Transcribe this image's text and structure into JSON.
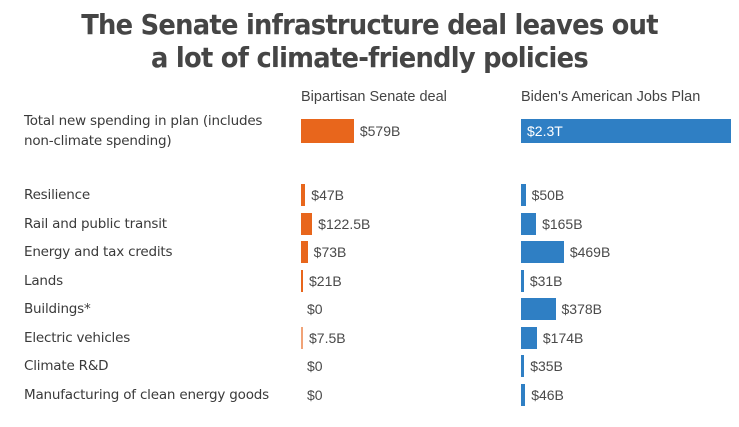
{
  "chart_data": {
    "type": "bar",
    "orientation": "horizontal",
    "title": "The Senate infrastructure deal leaves out a lot of climate-friendly policies",
    "title_lines": [
      "The Senate infrastructure deal leaves out",
      "a lot of climate-friendly policies"
    ],
    "unit": "billions USD",
    "series": [
      {
        "name": "Bipartisan Senate deal",
        "color": "#E8661C",
        "total": {
          "value": 579,
          "label": "$579B"
        },
        "values": [
          47,
          122.5,
          73,
          21,
          0,
          7.5,
          0,
          0
        ],
        "labels": [
          "$47B",
          "$122.5B",
          "$73B",
          "$21B",
          "$0",
          "$7.5B",
          "$0",
          "$0"
        ]
      },
      {
        "name": "Biden's American Jobs Plan",
        "color": "#2F7FC4",
        "total": {
          "value": 2300,
          "label": "$2.3T"
        },
        "values": [
          50,
          165,
          469,
          31,
          378,
          174,
          35,
          46
        ],
        "labels": [
          "$50B",
          "$165B",
          "$469B",
          "$31B",
          "$378B",
          "$174B",
          "$35B",
          "$46B"
        ]
      }
    ],
    "total_row_label": [
      "Total new spending in plan (includes",
      "non-climate spending)"
    ],
    "categories": [
      "Resilience",
      "Rail and public transit",
      "Energy and tax credits",
      "Lands",
      "Buildings*",
      "Electric vehicles",
      "Climate R&D",
      "Manufacturing of clean energy goods"
    ],
    "xlabel": "",
    "ylabel": "",
    "grid": false,
    "legend": "column-headers-top"
  }
}
